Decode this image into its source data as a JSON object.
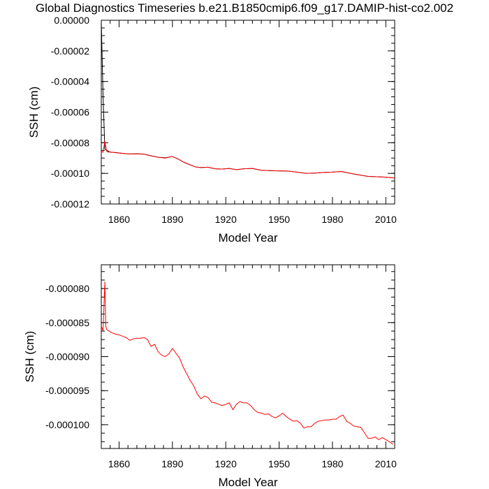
{
  "title": "Global Diagnostics Timeseries b.e21.B1850cmip6.f09_g17.DAMIP-hist-co2.002",
  "colors": {
    "raw_line": "#000000",
    "smoothed_line": "#ff0000",
    "axes": "#000000",
    "background": "#ffffff"
  },
  "chart_data": [
    {
      "type": "line",
      "title": "",
      "xlabel": "Model Year",
      "ylabel": "SSH (cm)",
      "xlim": [
        1850,
        2015
      ],
      "ylim": [
        -0.00012,
        0.0
      ],
      "xticks": [
        1860,
        1890,
        1920,
        1950,
        1980,
        2010
      ],
      "xtick_labels": [
        "1860",
        "1890",
        "1920",
        "1950",
        "1980",
        "2010"
      ],
      "yticks": [
        0.0,
        -2e-05,
        -4e-05,
        -6e-05,
        -8e-05,
        -0.0001,
        -0.00012
      ],
      "ytick_labels": [
        "0.00000",
        "-0.00002",
        "-0.00004",
        "-0.00006",
        "-0.00008",
        "-0.00010",
        "-0.00012"
      ],
      "grid": false,
      "series": [
        {
          "color": "#000000",
          "x": [
            1850,
            1851,
            1852,
            1853,
            1854,
            1855,
            1858,
            1862,
            1866,
            1870,
            1874,
            1878,
            1882,
            1886,
            1890,
            1893,
            1896,
            1899,
            1903,
            1906,
            1910,
            1914,
            1918,
            1922,
            1926,
            1930,
            1935,
            1940,
            1945,
            1950,
            1955,
            1960,
            1965,
            1970,
            1975,
            1980,
            1985,
            1990,
            1995,
            2000,
            2005,
            2010,
            2015
          ],
          "y": [
            -1e-06,
            -5e-05,
            -8.4e-05,
            -8.5e-05,
            -8.55e-05,
            -8.61e-05,
            -8.64e-05,
            -8.69e-05,
            -8.73e-05,
            -8.72e-05,
            -8.74e-05,
            -8.85e-05,
            -8.95e-05,
            -8.98e-05,
            -8.9e-05,
            -9.05e-05,
            -9.25e-05,
            -9.4e-05,
            -9.58e-05,
            -9.62e-05,
            -9.6e-05,
            -9.7e-05,
            -9.72e-05,
            -9.68e-05,
            -9.76e-05,
            -9.7e-05,
            -9.68e-05,
            -9.8e-05,
            -9.82e-05,
            -9.84e-05,
            -9.85e-05,
            -9.92e-05,
            -0.0001,
            -9.98e-05,
            -9.94e-05,
            -9.92e-05,
            -9.88e-05,
            -0.0001,
            -0.000101,
            -0.000102,
            -0.0001022,
            -0.0001025,
            -0.000103
          ]
        },
        {
          "color": "#ff0000",
          "x": [
            1850,
            1851,
            1852,
            1853,
            1854,
            1855,
            1858,
            1862,
            1866,
            1870,
            1874,
            1878,
            1882,
            1886,
            1890,
            1893,
            1896,
            1899,
            1903,
            1906,
            1910,
            1914,
            1918,
            1922,
            1926,
            1930,
            1935,
            1940,
            1945,
            1950,
            1955,
            1960,
            1965,
            1970,
            1975,
            1980,
            1985,
            1990,
            1995,
            2000,
            2005,
            2010,
            2015
          ],
          "y": [
            -8.55e-05,
            -8.62e-05,
            -7.9e-05,
            -8.55e-05,
            -8.62e-05,
            -8.6e-05,
            -8.65e-05,
            -8.7e-05,
            -8.74e-05,
            -8.72e-05,
            -8.75e-05,
            -8.86e-05,
            -8.95e-05,
            -9e-05,
            -8.9e-05,
            -9.05e-05,
            -9.25e-05,
            -9.4e-05,
            -9.58e-05,
            -9.62e-05,
            -9.6e-05,
            -9.7e-05,
            -9.72e-05,
            -9.68e-05,
            -9.76e-05,
            -9.7e-05,
            -9.68e-05,
            -9.8e-05,
            -9.82e-05,
            -9.84e-05,
            -9.85e-05,
            -9.92e-05,
            -0.0001,
            -9.98e-05,
            -9.94e-05,
            -9.92e-05,
            -9.88e-05,
            -0.0001,
            -0.000101,
            -0.000102,
            -0.0001022,
            -0.0001025,
            -0.000103
          ]
        }
      ]
    },
    {
      "type": "line",
      "title": "",
      "xlabel": "Model Year",
      "ylabel": "SSH (cm)",
      "xlim": [
        1850,
        2015
      ],
      "ylim": [
        -0.0001035,
        -7.65e-05
      ],
      "xticks": [
        1860,
        1890,
        1920,
        1950,
        1980,
        2010
      ],
      "xtick_labels": [
        "1860",
        "1890",
        "1920",
        "1950",
        "1980",
        "2010"
      ],
      "yticks": [
        -8e-05,
        -8.5e-05,
        -9e-05,
        -9.5e-05,
        -0.0001
      ],
      "ytick_labels": [
        "-0.000080",
        "-0.000085",
        "-0.000090",
        "-0.000095",
        "-0.000100"
      ],
      "grid": false,
      "series": [
        {
          "color": "#ff0000",
          "x": [
            1850,
            1851,
            1852,
            1852.5,
            1853,
            1854,
            1856,
            1858,
            1860,
            1862,
            1864,
            1866,
            1868,
            1870,
            1872,
            1874,
            1876,
            1878,
            1880,
            1882,
            1884,
            1886,
            1888,
            1890,
            1892,
            1894,
            1896,
            1898,
            1900,
            1902,
            1904,
            1906,
            1908,
            1910,
            1912,
            1914,
            1916,
            1918,
            1920,
            1922,
            1924,
            1926,
            1928,
            1930,
            1932,
            1934,
            1936,
            1938,
            1940,
            1942,
            1944,
            1946,
            1948,
            1950,
            1952,
            1954,
            1956,
            1958,
            1960,
            1962,
            1964,
            1966,
            1968,
            1970,
            1972,
            1974,
            1976,
            1978,
            1980,
            1982,
            1984,
            1986,
            1988,
            1990,
            1992,
            1994,
            1996,
            1998,
            2000,
            2002,
            2004,
            2006,
            2008,
            2010,
            2012,
            2014
          ],
          "y": [
            -8.55e-05,
            -8.62e-05,
            -7.9e-05,
            -8.55e-05,
            -8.6e-05,
            -8.62e-05,
            -8.65e-05,
            -8.67e-05,
            -8.68e-05,
            -8.7e-05,
            -8.72e-05,
            -8.76e-05,
            -8.74e-05,
            -8.73e-05,
            -8.73e-05,
            -8.72e-05,
            -8.75e-05,
            -8.85e-05,
            -8.82e-05,
            -8.93e-05,
            -8.98e-05,
            -9e-05,
            -8.96e-05,
            -8.88e-05,
            -8.95e-05,
            -9.02e-05,
            -9.15e-05,
            -9.25e-05,
            -9.35e-05,
            -9.43e-05,
            -9.55e-05,
            -9.62e-05,
            -9.58e-05,
            -9.6e-05,
            -9.67e-05,
            -9.68e-05,
            -9.7e-05,
            -9.72e-05,
            -9.7e-05,
            -9.68e-05,
            -9.78e-05,
            -9.7e-05,
            -9.66e-05,
            -9.68e-05,
            -9.68e-05,
            -9.72e-05,
            -9.78e-05,
            -9.82e-05,
            -9.83e-05,
            -9.85e-05,
            -9.84e-05,
            -9.88e-05,
            -9.9e-05,
            -9.87e-05,
            -9.83e-05,
            -9.88e-05,
            -9.92e-05,
            -9.95e-05,
            -9.94e-05,
            -9.98e-05,
            -0.0001005,
            -0.0001003,
            -0.0001003,
            -9.98e-05,
            -9.95e-05,
            -9.94e-05,
            -9.93e-05,
            -9.93e-05,
            -9.92e-05,
            -9.92e-05,
            -9.88e-05,
            -9.86e-05,
            -9.95e-05,
            -9.98e-05,
            -0.0001002,
            -0.0001003,
            -0.0001004,
            -0.0001012,
            -0.000102,
            -0.000102,
            -0.0001018,
            -0.0001022,
            -0.0001019,
            -0.0001022,
            -0.0001025,
            -0.0001029
          ]
        }
      ]
    }
  ]
}
